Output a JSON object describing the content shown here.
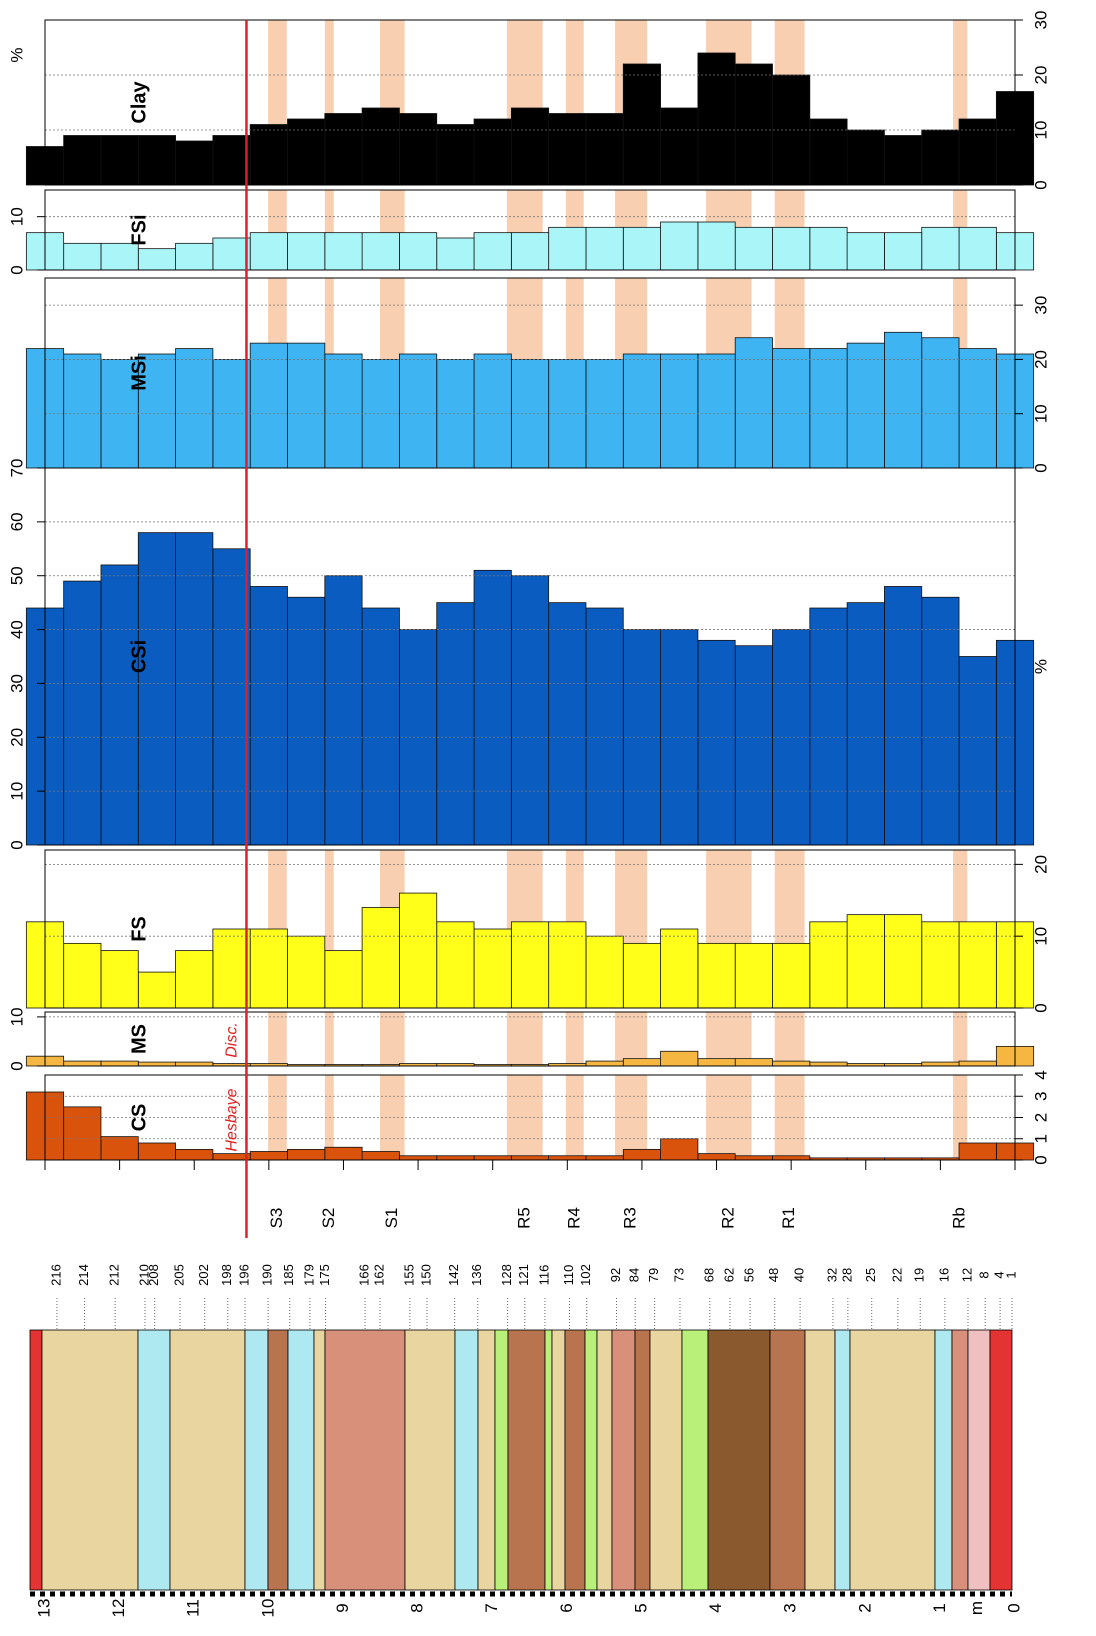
{
  "chart_data": [
    {
      "type": "area",
      "name": "Clay",
      "unit": "%",
      "color": "#000000",
      "ylim": [
        0,
        30
      ],
      "yticks": [
        0,
        10,
        20,
        30
      ],
      "x": [
        0,
        0.5,
        1,
        1.5,
        2,
        2.5,
        3,
        3.5,
        4,
        4.5,
        5,
        5.5,
        6,
        6.5,
        7,
        7.5,
        8,
        8.5,
        9,
        9.5,
        10,
        10.5,
        11,
        11.5,
        12,
        12.5,
        13
      ],
      "values": [
        17,
        12,
        10,
        9,
        10,
        12,
        20,
        22,
        24,
        14,
        22,
        13,
        13,
        14,
        12,
        11,
        13,
        14,
        13,
        12,
        11,
        9,
        8,
        9,
        9,
        9,
        7
      ]
    },
    {
      "type": "area",
      "name": "FSi",
      "color": "#aaf5f8",
      "ylim": [
        0,
        15
      ],
      "yticks": [
        0,
        10
      ],
      "x": [
        0,
        0.5,
        1,
        1.5,
        2,
        2.5,
        3,
        3.5,
        4,
        4.5,
        5,
        5.5,
        6,
        6.5,
        7,
        7.5,
        8,
        8.5,
        9,
        9.5,
        10,
        10.5,
        11,
        11.5,
        12,
        12.5,
        13
      ],
      "values": [
        7,
        8,
        8,
        7,
        7,
        8,
        8,
        8,
        9,
        9,
        8,
        8,
        8,
        7,
        7,
        6,
        7,
        7,
        7,
        7,
        7,
        6,
        5,
        4,
        5,
        5,
        7
      ]
    },
    {
      "type": "area",
      "name": "MSi",
      "color": "#3fb4f2",
      "ylim": [
        0,
        35
      ],
      "yticks": [
        0,
        10,
        20,
        30
      ],
      "x": [
        0,
        0.5,
        1,
        1.5,
        2,
        2.5,
        3,
        3.5,
        4,
        4.5,
        5,
        5.5,
        6,
        6.5,
        7,
        7.5,
        8,
        8.5,
        9,
        9.5,
        10,
        10.5,
        11,
        11.5,
        12,
        12.5,
        13
      ],
      "values": [
        21,
        22,
        24,
        25,
        23,
        22,
        22,
        24,
        21,
        21,
        21,
        20,
        20,
        20,
        21,
        20,
        21,
        20,
        21,
        23,
        23,
        20,
        22,
        21,
        20,
        21,
        22
      ]
    },
    {
      "type": "area",
      "name": "CSi",
      "unit": "%",
      "color": "#0a5cc0",
      "ylim": [
        0,
        70
      ],
      "yticks": [
        0,
        10,
        20,
        30,
        40,
        50,
        60,
        70
      ],
      "x": [
        0,
        0.5,
        1,
        1.5,
        2,
        2.5,
        3,
        3.5,
        4,
        4.5,
        5,
        5.5,
        6,
        6.5,
        7,
        7.5,
        8,
        8.5,
        9,
        9.5,
        10,
        10.5,
        11,
        11.5,
        12,
        12.5,
        13
      ],
      "values": [
        38,
        35,
        46,
        48,
        45,
        44,
        40,
        37,
        38,
        40,
        40,
        44,
        45,
        50,
        51,
        45,
        40,
        44,
        50,
        46,
        48,
        55,
        58,
        58,
        52,
        49,
        44
      ]
    },
    {
      "type": "area",
      "name": "FS",
      "color": "#ffff1a",
      "ylim": [
        0,
        22
      ],
      "yticks": [
        0,
        10,
        20
      ],
      "x": [
        0,
        0.5,
        1,
        1.5,
        2,
        2.5,
        3,
        3.5,
        4,
        4.5,
        5,
        5.5,
        6,
        6.5,
        7,
        7.5,
        8,
        8.5,
        9,
        9.5,
        10,
        10.5,
        11,
        11.5,
        12,
        12.5,
        13
      ],
      "values": [
        12,
        12,
        12,
        13,
        13,
        12,
        9,
        9,
        9,
        11,
        9,
        10,
        12,
        12,
        11,
        12,
        16,
        14,
        8,
        10,
        11,
        11,
        8,
        5,
        8,
        9,
        12
      ]
    },
    {
      "type": "area",
      "name": "MS",
      "color": "#f5b742",
      "ylim": [
        0,
        11
      ],
      "yticks": [
        0,
        10
      ],
      "x": [
        0,
        0.5,
        1,
        1.5,
        2,
        2.5,
        3,
        3.5,
        4,
        4.5,
        5,
        5.5,
        6,
        6.5,
        7,
        7.5,
        8,
        8.5,
        9,
        9.5,
        10,
        10.5,
        11,
        11.5,
        12,
        12.5,
        13
      ],
      "values": [
        4,
        1,
        0.8,
        0.5,
        0.5,
        0.8,
        1,
        1.5,
        1.5,
        3,
        1.5,
        1,
        0.5,
        0.3,
        0.3,
        0.5,
        0.5,
        0.3,
        0.3,
        0.3,
        0.5,
        0.5,
        0.8,
        0.8,
        1,
        1,
        2
      ]
    },
    {
      "type": "area",
      "name": "CS",
      "color": "#d9530d",
      "ylim": [
        0,
        4
      ],
      "yticks": [
        0,
        1,
        2,
        3,
        4
      ],
      "x": [
        0,
        0.5,
        1,
        1.5,
        2,
        2.5,
        3,
        3.5,
        4,
        4.5,
        5,
        5.5,
        6,
        6.5,
        7,
        7.5,
        8,
        8.5,
        9,
        9.5,
        10,
        10.5,
        11,
        11.5,
        12,
        12.5,
        13
      ],
      "values": [
        0.8,
        0.8,
        0.1,
        0.1,
        0.1,
        0.1,
        0.2,
        0.2,
        0.3,
        1,
        0.5,
        0.2,
        0.2,
        0.2,
        0.2,
        0.2,
        0.2,
        0.4,
        0.6,
        0.5,
        0.4,
        0.3,
        0.5,
        0.8,
        1.1,
        2.5,
        3.2
      ]
    }
  ],
  "depth_axis": {
    "xlim": [
      0,
      13
    ],
    "ticks": [
      0,
      1,
      2,
      3,
      4,
      5,
      6,
      7,
      8,
      9,
      10,
      11,
      12,
      13
    ],
    "unit": "m"
  },
  "bands": [
    {
      "label": "S3",
      "from": 9.76,
      "to": 10.01
    },
    {
      "label": "S2",
      "from": 9.13,
      "to": 9.25
    },
    {
      "label": "S1",
      "from": 8.18,
      "to": 8.51
    },
    {
      "label": "R5",
      "from": 6.33,
      "to": 6.81
    },
    {
      "label": "R4",
      "from": 5.78,
      "to": 6.02
    },
    {
      "label": "R3",
      "from": 4.93,
      "to": 5.36
    },
    {
      "label": "R2",
      "from": 3.53,
      "to": 4.14
    },
    {
      "label": "R1",
      "from": 2.82,
      "to": 3.22
    },
    {
      "label": "Rb",
      "from": 0.64,
      "to": 0.83
    }
  ],
  "discontinuity": {
    "depth": 10.3,
    "labels": [
      "Hesbaye",
      "Disc."
    ]
  },
  "samples": {
    "ids": [
      216,
      214,
      212,
      210,
      208,
      205,
      202,
      198,
      196,
      190,
      185,
      179,
      175,
      166,
      162,
      155,
      150,
      142,
      136,
      128,
      121,
      116,
      110,
      102,
      92,
      84,
      79,
      73,
      68,
      62,
      56,
      48,
      40,
      32,
      28,
      25,
      22,
      19,
      16,
      12,
      8,
      4,
      1
    ],
    "depths": [
      12.84,
      12.47,
      12.06,
      11.66,
      11.53,
      11.19,
      10.86,
      10.55,
      10.32,
      10.01,
      9.72,
      9.45,
      9.24,
      8.71,
      8.51,
      8.11,
      7.88,
      7.51,
      7.2,
      6.8,
      6.57,
      6.3,
      5.97,
      5.74,
      5.34,
      5.09,
      4.83,
      4.49,
      4.09,
      3.82,
      3.55,
      3.22,
      2.88,
      2.44,
      2.24,
      1.92,
      1.57,
      1.27,
      0.94,
      0.63,
      0.4,
      0.2,
      0.04
    ]
  }
}
